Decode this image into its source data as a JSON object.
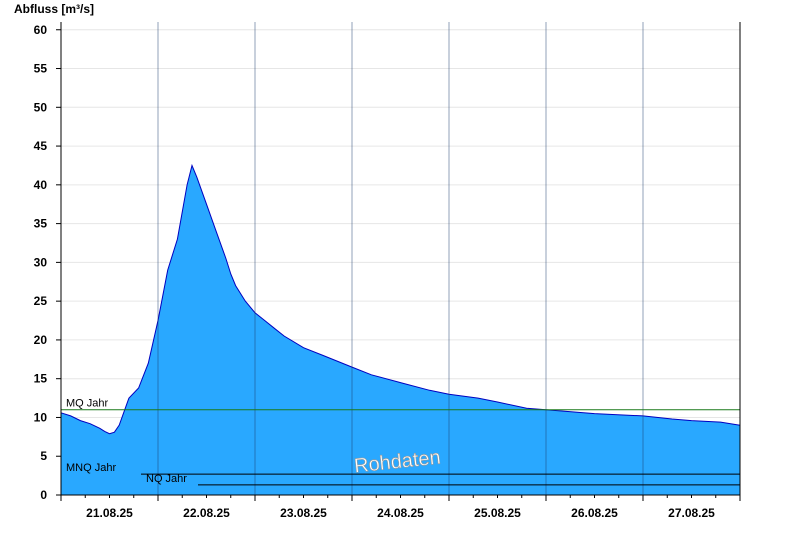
{
  "chart_data": {
    "type": "area",
    "ylabel": "Abfluss [m³/s]",
    "watermark": "Rohdaten",
    "ylim": [
      0,
      61
    ],
    "yticks": [
      0,
      5,
      10,
      15,
      20,
      25,
      30,
      35,
      40,
      45,
      50,
      55,
      60
    ],
    "xlim": [
      0,
      7
    ],
    "xtick_labels": [
      "21.08.25",
      "22.08.25",
      "23.08.25",
      "24.08.25",
      "25.08.25",
      "26.08.25",
      "27.08.25"
    ],
    "colors": {
      "fill": "#29a8ff",
      "line": "#0000c0",
      "mq": "#1a7a1a",
      "ref": "#000000"
    },
    "reference_lines": [
      {
        "label": "MQ Jahr",
        "value": 11.0
      },
      {
        "label": "MNQ Jahr",
        "value": 2.7
      },
      {
        "label": "NQ Jahr",
        "value": 1.3
      }
    ],
    "series": [
      {
        "x": [
          0,
          0.1,
          0.2,
          0.3,
          0.4,
          0.45,
          0.5,
          0.55,
          0.6,
          0.7,
          0.8,
          0.9,
          1.0,
          1.1,
          1.2,
          1.3,
          1.35,
          1.4,
          1.5,
          1.6,
          1.7,
          1.75,
          1.8,
          1.9,
          2.0,
          2.1,
          2.2,
          2.3,
          2.5,
          2.7,
          3.0,
          3.2,
          3.5,
          3.8,
          4.0,
          4.3,
          4.5,
          4.8,
          5.0,
          5.5,
          6.0,
          6.3,
          6.5,
          6.8,
          7.0
        ],
        "y": [
          10.6,
          10.2,
          9.6,
          9.2,
          8.6,
          8.2,
          7.9,
          8.1,
          9.0,
          12.5,
          13.8,
          17.0,
          22.5,
          29.0,
          33.0,
          40.0,
          42.5,
          41.0,
          37.5,
          34.0,
          30.5,
          28.5,
          27.0,
          25.0,
          23.5,
          22.5,
          21.5,
          20.5,
          19.0,
          18.0,
          16.5,
          15.5,
          14.5,
          13.5,
          13.0,
          12.5,
          12.0,
          11.2,
          11.0,
          10.5,
          10.2,
          9.8,
          9.6,
          9.4,
          9.0
        ]
      }
    ]
  }
}
